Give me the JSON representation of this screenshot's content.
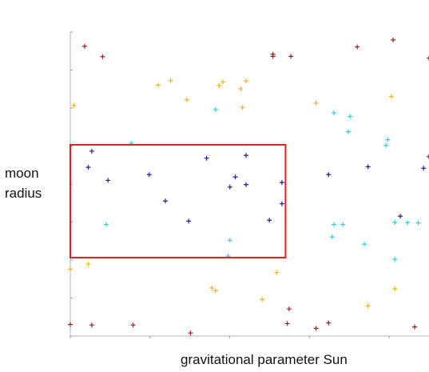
{
  "chart_data": {
    "type": "scatter",
    "xlabel": "gravitational parameter Sun",
    "ylabel_lines": [
      "moon",
      "radius"
    ],
    "xlim": [
      0,
      1
    ],
    "ylim": [
      0,
      1
    ],
    "marker": "+",
    "grid": false,
    "legend": "none",
    "highlight_region": {
      "x": [
        0.0,
        0.6
      ],
      "y": [
        0.258,
        0.629
      ],
      "color": "#e02020"
    },
    "series": [
      {
        "color": "#1e1e9a",
        "points": [
          [
            0.06,
            0.608
          ],
          [
            0.05,
            0.555
          ],
          [
            0.105,
            0.512
          ],
          [
            0.22,
            0.531
          ],
          [
            0.265,
            0.444
          ],
          [
            0.33,
            0.378
          ],
          [
            0.38,
            0.585
          ],
          [
            0.445,
            0.49
          ],
          [
            0.46,
            0.523
          ],
          [
            0.49,
            0.498
          ],
          [
            0.49,
            0.594
          ],
          [
            0.555,
            0.381
          ],
          [
            0.59,
            0.505
          ],
          [
            0.59,
            0.435
          ],
          [
            0.72,
            0.531
          ],
          [
            0.83,
            0.557
          ],
          [
            0.92,
            0.394
          ],
          [
            0.985,
            0.552
          ],
          [
            1.0,
            0.59
          ]
        ]
      },
      {
        "color": "#2ecfe6",
        "points": [
          [
            0.1,
            0.367
          ],
          [
            0.17,
            0.634
          ],
          [
            0.405,
            0.745
          ],
          [
            0.445,
            0.315
          ],
          [
            0.44,
            0.263
          ],
          [
            0.735,
            0.734
          ],
          [
            0.735,
            0.367
          ],
          [
            0.73,
            0.326
          ],
          [
            0.76,
            0.367
          ],
          [
            0.78,
            0.722
          ],
          [
            0.775,
            0.672
          ],
          [
            0.82,
            0.302
          ],
          [
            0.88,
            0.627
          ],
          [
            0.885,
            0.646
          ],
          [
            0.905,
            0.374
          ],
          [
            0.905,
            0.252
          ],
          [
            0.94,
            0.373
          ],
          [
            0.97,
            0.372
          ]
        ]
      },
      {
        "color": "#f2b21f",
        "points": [
          [
            0.01,
            0.758
          ],
          [
            0.0,
            0.22
          ],
          [
            0.05,
            0.237
          ],
          [
            0.245,
            0.825
          ],
          [
            0.28,
            0.84
          ],
          [
            0.325,
            0.777
          ],
          [
            0.395,
            0.158
          ],
          [
            0.405,
            0.149
          ],
          [
            0.415,
            0.824
          ],
          [
            0.425,
            0.836
          ],
          [
            0.475,
            0.813
          ],
          [
            0.48,
            0.752
          ],
          [
            0.49,
            0.839
          ],
          [
            0.535,
            0.12
          ],
          [
            0.575,
            0.209
          ],
          [
            0.685,
            0.766
          ],
          [
            0.83,
            0.099
          ],
          [
            0.895,
            0.788
          ],
          [
            0.905,
            0.155
          ]
        ]
      },
      {
        "color": "#a41c1c",
        "points": [
          [
            0.04,
            0.953
          ],
          [
            0.09,
            0.919
          ],
          [
            0.565,
            0.92
          ],
          [
            0.565,
            0.927
          ],
          [
            0.615,
            0.92
          ],
          [
            0.0,
            0.038
          ],
          [
            0.06,
            0.036
          ],
          [
            0.175,
            0.036
          ],
          [
            0.335,
            0.01
          ],
          [
            0.605,
            0.041
          ],
          [
            0.61,
            0.089
          ],
          [
            0.685,
            0.025
          ],
          [
            0.72,
            0.043
          ],
          [
            0.8,
            0.951
          ],
          [
            0.9,
            0.974
          ],
          [
            1.0,
            0.914
          ],
          [
            0.96,
            0.03
          ]
        ]
      }
    ]
  }
}
